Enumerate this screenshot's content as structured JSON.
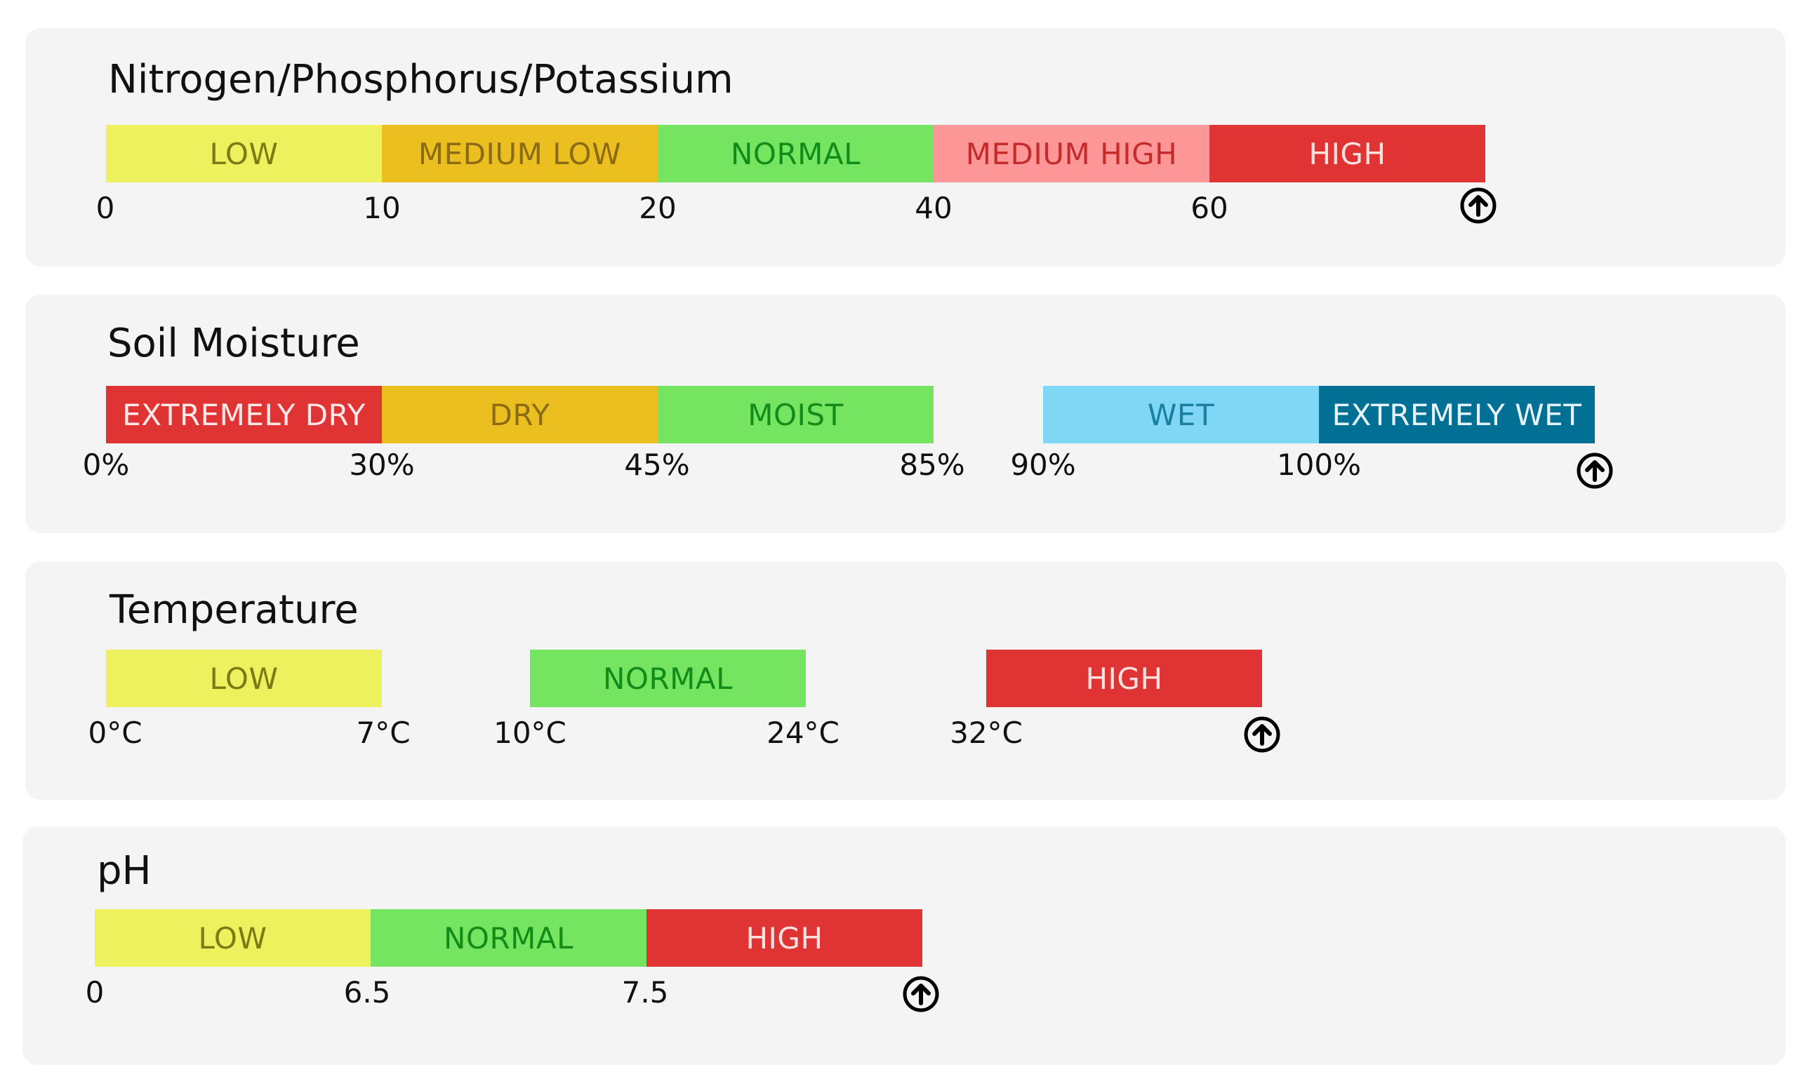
{
  "panels": [
    {
      "title": "Nitrogen/Phosphorus/Potassium",
      "segments": [
        {
          "label": "LOW",
          "bg": "#eef15e",
          "fg": "#7d7a16"
        },
        {
          "label": "MEDIUM LOW",
          "bg": "#ecbf21",
          "fg": "#8b6b13"
        },
        {
          "label": "NORMAL",
          "bg": "#75e461",
          "fg": "#128c19"
        },
        {
          "label": "MEDIUM HIGH",
          "bg": "#fd9797",
          "fg": "#c62b2b"
        },
        {
          "label": "HIGH",
          "bg": "#e03333",
          "fg": "#fbe0e0"
        }
      ],
      "ticks": [
        "0",
        "10",
        "20",
        "40",
        "60"
      ]
    },
    {
      "title": "Soil Moisture",
      "segments": [
        {
          "label": "EXTREMELY DRY",
          "bg": "#e03333",
          "fg": "#fde7e7"
        },
        {
          "label": "DRY",
          "bg": "#ecbf21",
          "fg": "#8b6b13"
        },
        {
          "label": "MOIST",
          "bg": "#75e461",
          "fg": "#128c19"
        },
        {
          "label": "WET",
          "bg": "#7fd7f5",
          "fg": "#1a7fa0"
        },
        {
          "label": "EXTREMELY WET",
          "bg": "#026f95",
          "fg": "#e5f4fa"
        }
      ],
      "ticks": [
        "0%",
        "30%",
        "45%",
        "85%",
        "90%",
        "100%"
      ]
    },
    {
      "title": "Temperature",
      "segments": [
        {
          "label": "LOW",
          "bg": "#eef15e",
          "fg": "#7d7a16"
        },
        {
          "label": "NORMAL",
          "bg": "#75e461",
          "fg": "#128c19"
        },
        {
          "label": "HIGH",
          "bg": "#e03333",
          "fg": "#fbe0e0"
        }
      ],
      "ticks": [
        "0°C",
        "7°C",
        "10°C",
        "24°C",
        "32°C"
      ]
    },
    {
      "title": "pH",
      "segments": [
        {
          "label": "LOW",
          "bg": "#eef15e",
          "fg": "#7d7a16"
        },
        {
          "label": "NORMAL",
          "bg": "#75e461",
          "fg": "#128c19"
        },
        {
          "label": "HIGH",
          "bg": "#e03333",
          "fg": "#fbe0e0"
        }
      ],
      "ticks": [
        "0",
        "6.5",
        "7.5"
      ]
    }
  ],
  "icons": {
    "scale_end": "arrow-circle-up-icon"
  }
}
